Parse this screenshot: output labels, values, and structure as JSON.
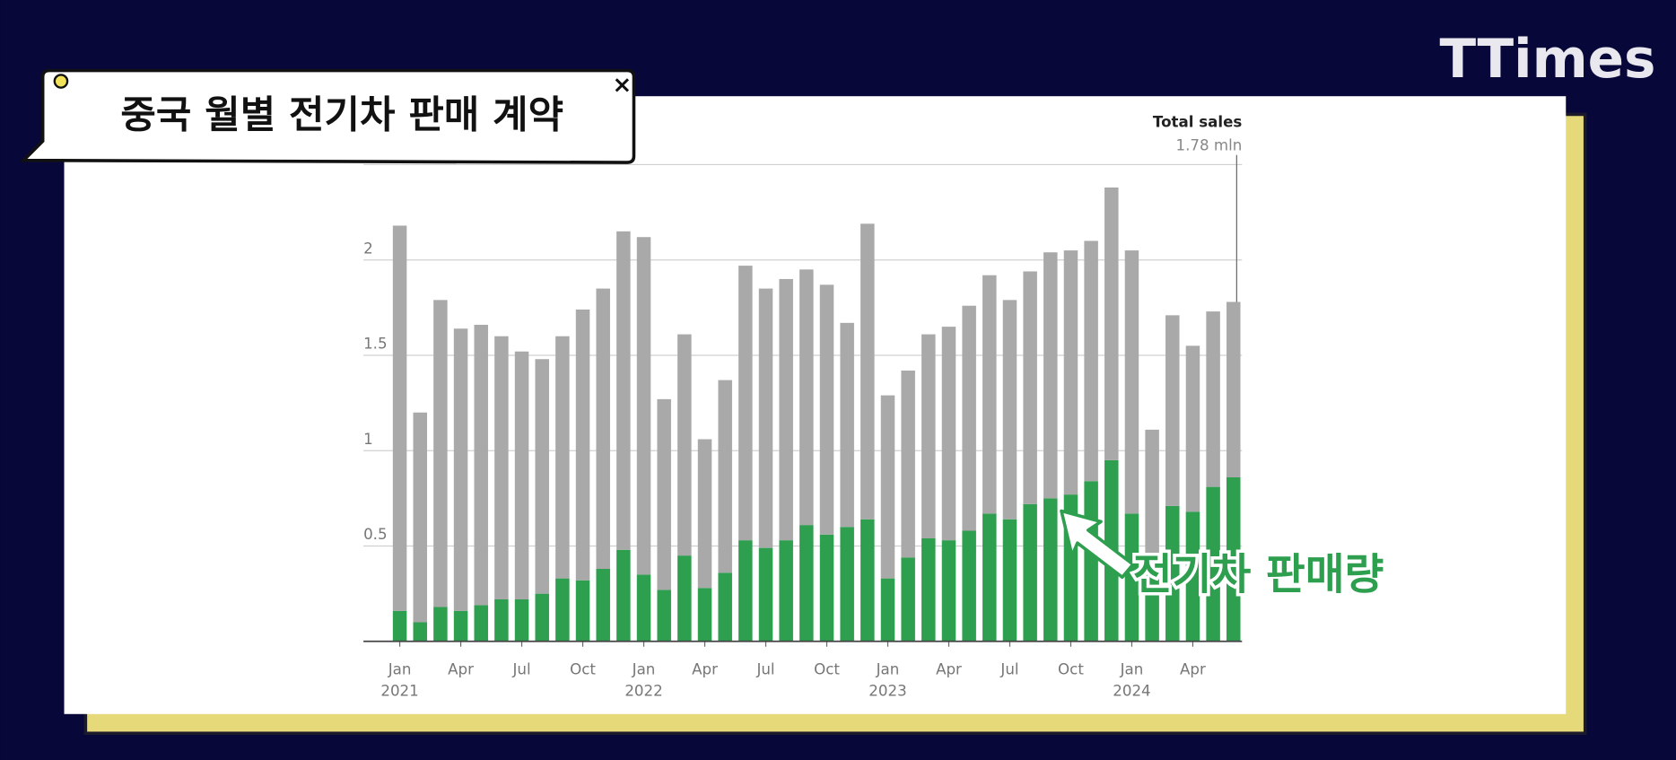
{
  "logo": "TTimes",
  "caption": {
    "title": "중국 월별 전기차 판매 계약",
    "close": "×"
  },
  "chart_data": {
    "type": "stacked_bar",
    "categories": [
      "Jan",
      null,
      null,
      "Apr",
      null,
      null,
      "Jul",
      null,
      null,
      "Oct",
      null,
      null,
      "Jan",
      null,
      null,
      "Apr",
      null,
      null,
      "Jul",
      null,
      null,
      "Oct",
      null,
      null,
      "Jan",
      null,
      null,
      "Apr",
      null,
      null,
      "Jul",
      null,
      null,
      "Oct",
      null,
      null,
      "Jan",
      null,
      null,
      "Apr",
      null,
      null
    ],
    "years": [
      "2021",
      null,
      null,
      null,
      null,
      null,
      null,
      null,
      null,
      null,
      null,
      null,
      "2022",
      null,
      null,
      null,
      null,
      null,
      null,
      null,
      null,
      null,
      null,
      null,
      "2023",
      null,
      null,
      null,
      null,
      null,
      null,
      null,
      null,
      null,
      null,
      null,
      "2024",
      null,
      null,
      null,
      null,
      null
    ],
    "series": [
      {
        "color": "#2e9e4f",
        "values": [
          0.16,
          0.1,
          0.18,
          0.16,
          0.19,
          0.22,
          0.22,
          0.25,
          0.33,
          0.32,
          0.38,
          0.48,
          0.35,
          0.27,
          0.45,
          0.28,
          0.36,
          0.53,
          0.49,
          0.53,
          0.61,
          0.56,
          0.6,
          0.64,
          0.33,
          0.44,
          0.54,
          0.53,
          0.58,
          0.67,
          0.64,
          0.72,
          0.75,
          0.77,
          0.84,
          0.95,
          0.67,
          0.39,
          0.71,
          0.68,
          0.81,
          0.86
        ]
      },
      {
        "color": "#a9a9a9",
        "values": [
          2.02,
          1.1,
          1.61,
          1.48,
          1.47,
          1.38,
          1.3,
          1.23,
          1.27,
          1.42,
          1.47,
          1.67,
          1.77,
          1.0,
          1.16,
          0.78,
          1.01,
          1.44,
          1.36,
          1.37,
          1.34,
          1.31,
          1.07,
          1.55,
          0.96,
          0.98,
          1.07,
          1.12,
          1.18,
          1.25,
          1.15,
          1.22,
          1.29,
          1.28,
          1.26,
          1.43,
          1.38,
          0.72,
          1.0,
          0.87,
          0.92,
          0.92
        ]
      }
    ],
    "ylim": [
      0,
      2.5
    ],
    "yticks": [
      0.5,
      1,
      1.5,
      2
    ],
    "grid": true,
    "annotations": {
      "total_title": "Total sales",
      "total_value": "1.78 mln",
      "ev": "전기차 판매량"
    }
  }
}
